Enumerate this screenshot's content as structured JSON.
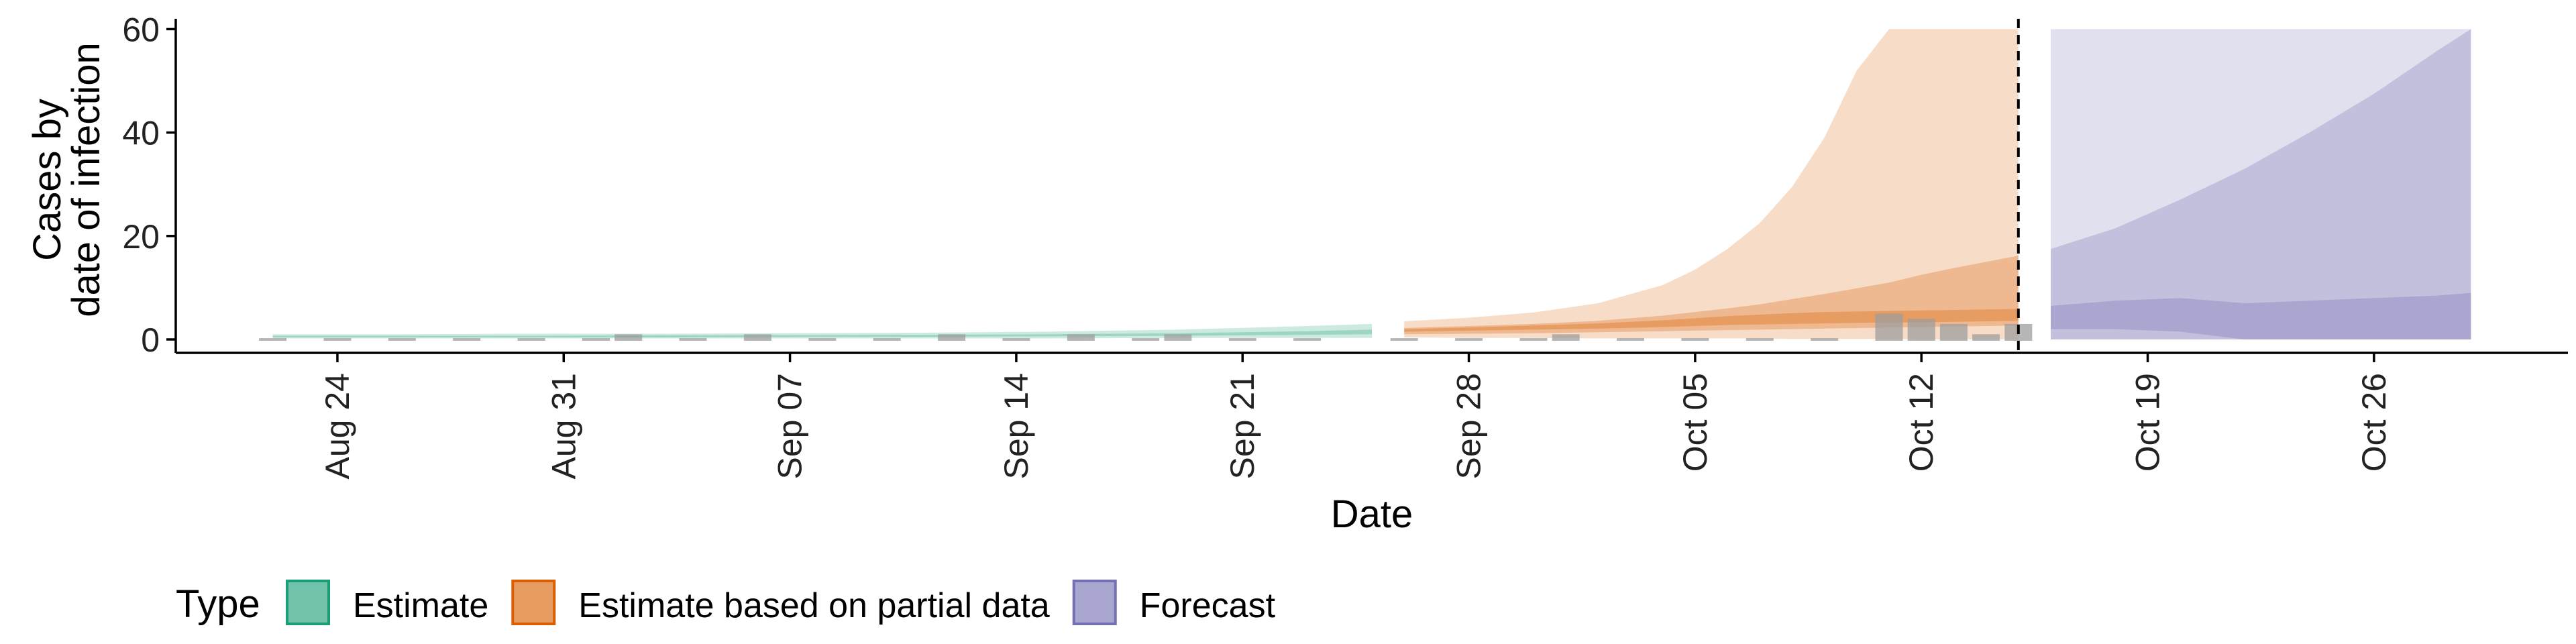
{
  "chart_data": {
    "type": "area",
    "xlabel": "Date",
    "ylabel_lines": [
      "Cases by",
      "date of infection"
    ],
    "ylim": [
      0,
      62
    ],
    "yticks": [
      0,
      20,
      40,
      60
    ],
    "xlim": [
      "2020-08-19",
      "2020-11-01"
    ],
    "xticks": [
      {
        "date": "2020-08-24",
        "label": "Aug 24"
      },
      {
        "date": "2020-08-31",
        "label": "Aug 31"
      },
      {
        "date": "2020-09-07",
        "label": "Sep 07"
      },
      {
        "date": "2020-09-14",
        "label": "Sep 14"
      },
      {
        "date": "2020-09-21",
        "label": "Sep 21"
      },
      {
        "date": "2020-09-28",
        "label": "Sep 28"
      },
      {
        "date": "2020-10-05",
        "label": "Oct 05"
      },
      {
        "date": "2020-10-12",
        "label": "Oct 12"
      },
      {
        "date": "2020-10-19",
        "label": "Oct 19"
      },
      {
        "date": "2020-10-26",
        "label": "Oct 26"
      }
    ],
    "vline_date": "2020-10-15",
    "legend": {
      "title": "Type",
      "position": "bottom",
      "items": [
        {
          "label": "Estimate",
          "color": "#1b9e77"
        },
        {
          "label": "Estimate based on partial data",
          "color": "#d95f02"
        },
        {
          "label": "Forecast",
          "color": "#7570b3"
        }
      ]
    },
    "series": [
      {
        "type_index": 0,
        "color": "#1b9e77",
        "dates": [
          "2020-08-22",
          "2020-08-26",
          "2020-08-30",
          "2020-09-03",
          "2020-09-07",
          "2020-09-11",
          "2020-09-15",
          "2020-09-19",
          "2020-09-23",
          "2020-09-25"
        ],
        "outer_lo": [
          0.2,
          0.2,
          0.2,
          0.2,
          0.2,
          0.2,
          0.2,
          0.3,
          0.3,
          0.3
        ],
        "outer_hi": [
          1.0,
          1.0,
          1.1,
          1.1,
          1.2,
          1.3,
          1.5,
          1.9,
          2.6,
          3.0
        ],
        "inner_lo": [
          0.4,
          0.4,
          0.4,
          0.4,
          0.5,
          0.5,
          0.6,
          0.7,
          0.9,
          1.0
        ],
        "inner_hi": [
          0.7,
          0.7,
          0.7,
          0.8,
          0.8,
          0.9,
          1.0,
          1.2,
          1.6,
          1.9
        ]
      },
      {
        "type_index": 1,
        "color": "#d95f02",
        "dates": [
          "2020-09-26",
          "2020-09-28",
          "2020-09-30",
          "2020-10-02",
          "2020-10-04",
          "2020-10-05",
          "2020-10-06",
          "2020-10-07",
          "2020-10-08",
          "2020-10-09",
          "2020-10-10",
          "2020-10-11",
          "2020-10-12",
          "2020-10-13",
          "2020-10-14",
          "2020-10-15"
        ],
        "outer_lo": [
          0.4,
          0.3,
          0.3,
          0.2,
          0.2,
          0.2,
          0.2,
          0.2,
          0.1,
          0.1,
          0.1,
          0.1,
          0,
          0,
          0,
          0
        ],
        "outer_hi": [
          3.5,
          4.2,
          5.2,
          7.0,
          10.5,
          13.5,
          17.5,
          22.5,
          29.5,
          39.0,
          52.0,
          60,
          60,
          60,
          60,
          60
        ],
        "inner_lo": [
          1.0,
          1.1,
          1.2,
          1.4,
          1.6,
          1.7,
          1.8,
          1.9,
          2.0,
          2.1,
          2.2,
          2.3,
          2.4,
          2.5,
          2.6,
          2.7
        ],
        "inner_hi": [
          2.2,
          2.6,
          3.0,
          3.6,
          4.6,
          5.3,
          6.0,
          6.8,
          7.8,
          8.8,
          9.9,
          11.0,
          12.5,
          13.8,
          15.0,
          16.2
        ],
        "core_lo": [
          1.5,
          1.7,
          1.9,
          2.1,
          2.4,
          2.6,
          2.8,
          2.9,
          3.0,
          3.1,
          3.2,
          3.3,
          3.3,
          3.4,
          3.5,
          3.6
        ],
        "core_hi": [
          2.0,
          2.3,
          2.7,
          3.1,
          3.7,
          4.1,
          4.5,
          4.8,
          5.1,
          5.3,
          5.4,
          5.5,
          5.6,
          5.7,
          5.8,
          5.9
        ]
      },
      {
        "type_index": 2,
        "color": "#7570b3",
        "dates": [
          "2020-10-16",
          "2020-10-18",
          "2020-10-20",
          "2020-10-22",
          "2020-10-24",
          "2020-10-26",
          "2020-10-28",
          "2020-10-29"
        ],
        "outer_lo": [
          0,
          0,
          0,
          0,
          0,
          0,
          0,
          0
        ],
        "outer_hi": [
          60,
          60,
          60,
          60,
          60,
          60,
          60,
          60
        ],
        "inner_lo": [
          0,
          0,
          0,
          0,
          0,
          0,
          0,
          0
        ],
        "inner_hi": [
          17.5,
          21.5,
          27.0,
          33.0,
          40.0,
          47.5,
          56.0,
          60.0
        ],
        "core_lo": [
          2.0,
          2.0,
          1.5,
          0,
          0,
          0,
          0,
          0
        ],
        "core_hi": [
          6.5,
          7.5,
          8.0,
          7.0,
          7.5,
          8.0,
          8.5,
          9.0
        ]
      }
    ],
    "reported_cases": {
      "color": "#9e9e9e",
      "dates": [
        "2020-08-22",
        "2020-08-24",
        "2020-08-26",
        "2020-08-28",
        "2020-08-30",
        "2020-09-01",
        "2020-09-02",
        "2020-09-04",
        "2020-09-06",
        "2020-09-08",
        "2020-09-10",
        "2020-09-12",
        "2020-09-14",
        "2020-09-16",
        "2020-09-18",
        "2020-09-19",
        "2020-09-21",
        "2020-09-23",
        "2020-09-26",
        "2020-09-28",
        "2020-09-30",
        "2020-10-01",
        "2020-10-03",
        "2020-10-05",
        "2020-10-07",
        "2020-10-09",
        "2020-10-11",
        "2020-10-12",
        "2020-10-13",
        "2020-10-14",
        "2020-10-15"
      ],
      "values": [
        0,
        0,
        0,
        0,
        0,
        0,
        1,
        0,
        1,
        0,
        0,
        1,
        0,
        1,
        0,
        1,
        0,
        0,
        0,
        0,
        0,
        1,
        0,
        0,
        0,
        0,
        5,
        4,
        3,
        1,
        3
      ]
    }
  }
}
